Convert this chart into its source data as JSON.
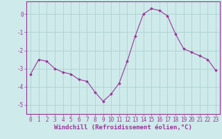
{
  "x": [
    0,
    1,
    2,
    3,
    4,
    5,
    6,
    7,
    8,
    9,
    10,
    11,
    12,
    13,
    14,
    15,
    16,
    17,
    18,
    19,
    20,
    21,
    22,
    23
  ],
  "y": [
    -3.3,
    -2.5,
    -2.6,
    -3.0,
    -3.2,
    -3.3,
    -3.6,
    -3.7,
    -4.3,
    -4.8,
    -4.4,
    -3.8,
    -2.6,
    -1.2,
    0.0,
    0.3,
    0.2,
    -0.1,
    -1.1,
    -1.9,
    -2.1,
    -2.3,
    -2.5,
    -3.1
  ],
  "line_color": "#993399",
  "marker": "D",
  "marker_size": 1.8,
  "linewidth": 0.8,
  "bg_color": "#ceeaea",
  "grid_color": "#aacccc",
  "tick_color": "#993399",
  "label_color": "#993399",
  "spine_color": "#993399",
  "xlabel": "Windchill (Refroidissement éolien,°C)",
  "xlim": [
    -0.5,
    23.5
  ],
  "ylim": [
    -5.5,
    0.7
  ],
  "yticks": [
    0,
    -1,
    -2,
    -3,
    -4,
    -5
  ],
  "xticks": [
    0,
    1,
    2,
    3,
    4,
    5,
    6,
    7,
    8,
    9,
    10,
    11,
    12,
    13,
    14,
    15,
    16,
    17,
    18,
    19,
    20,
    21,
    22,
    23
  ],
  "xlabel_fontsize": 6.5,
  "tick_fontsize": 5.5
}
